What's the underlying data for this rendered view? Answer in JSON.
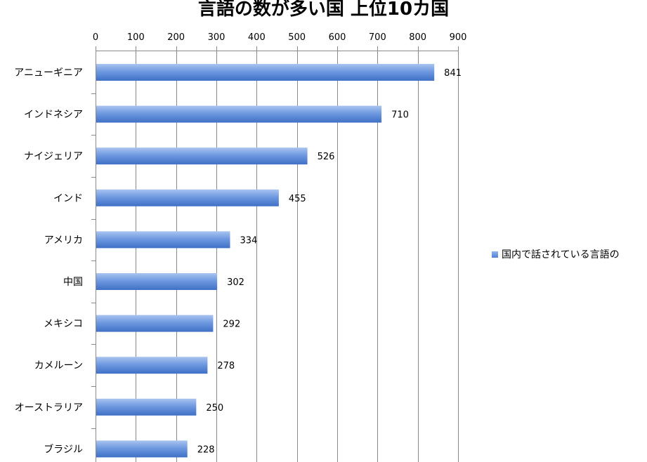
{
  "chart_data": {
    "type": "bar",
    "orientation": "horizontal",
    "title": "言語の数が多い国 上位10カ国",
    "categories": [
      "アニューギニア",
      "インドネシア",
      "ナイジェリア",
      "インド",
      "アメリカ",
      "中国",
      "メキシコ",
      "カメルーン",
      "オーストラリア",
      "ブラジル"
    ],
    "series": [
      {
        "name": "国内で話されている言語の",
        "values": [
          841,
          710,
          526,
          455,
          334,
          302,
          292,
          278,
          250,
          228
        ],
        "color": "#4f81d4"
      }
    ],
    "xlim": [
      0,
      900
    ],
    "xticks": [
      0,
      100,
      200,
      300,
      400,
      500,
      600,
      700,
      800,
      900
    ],
    "x_axis_position": "top",
    "grid": true,
    "legend_position": "right",
    "data_labels": true
  }
}
